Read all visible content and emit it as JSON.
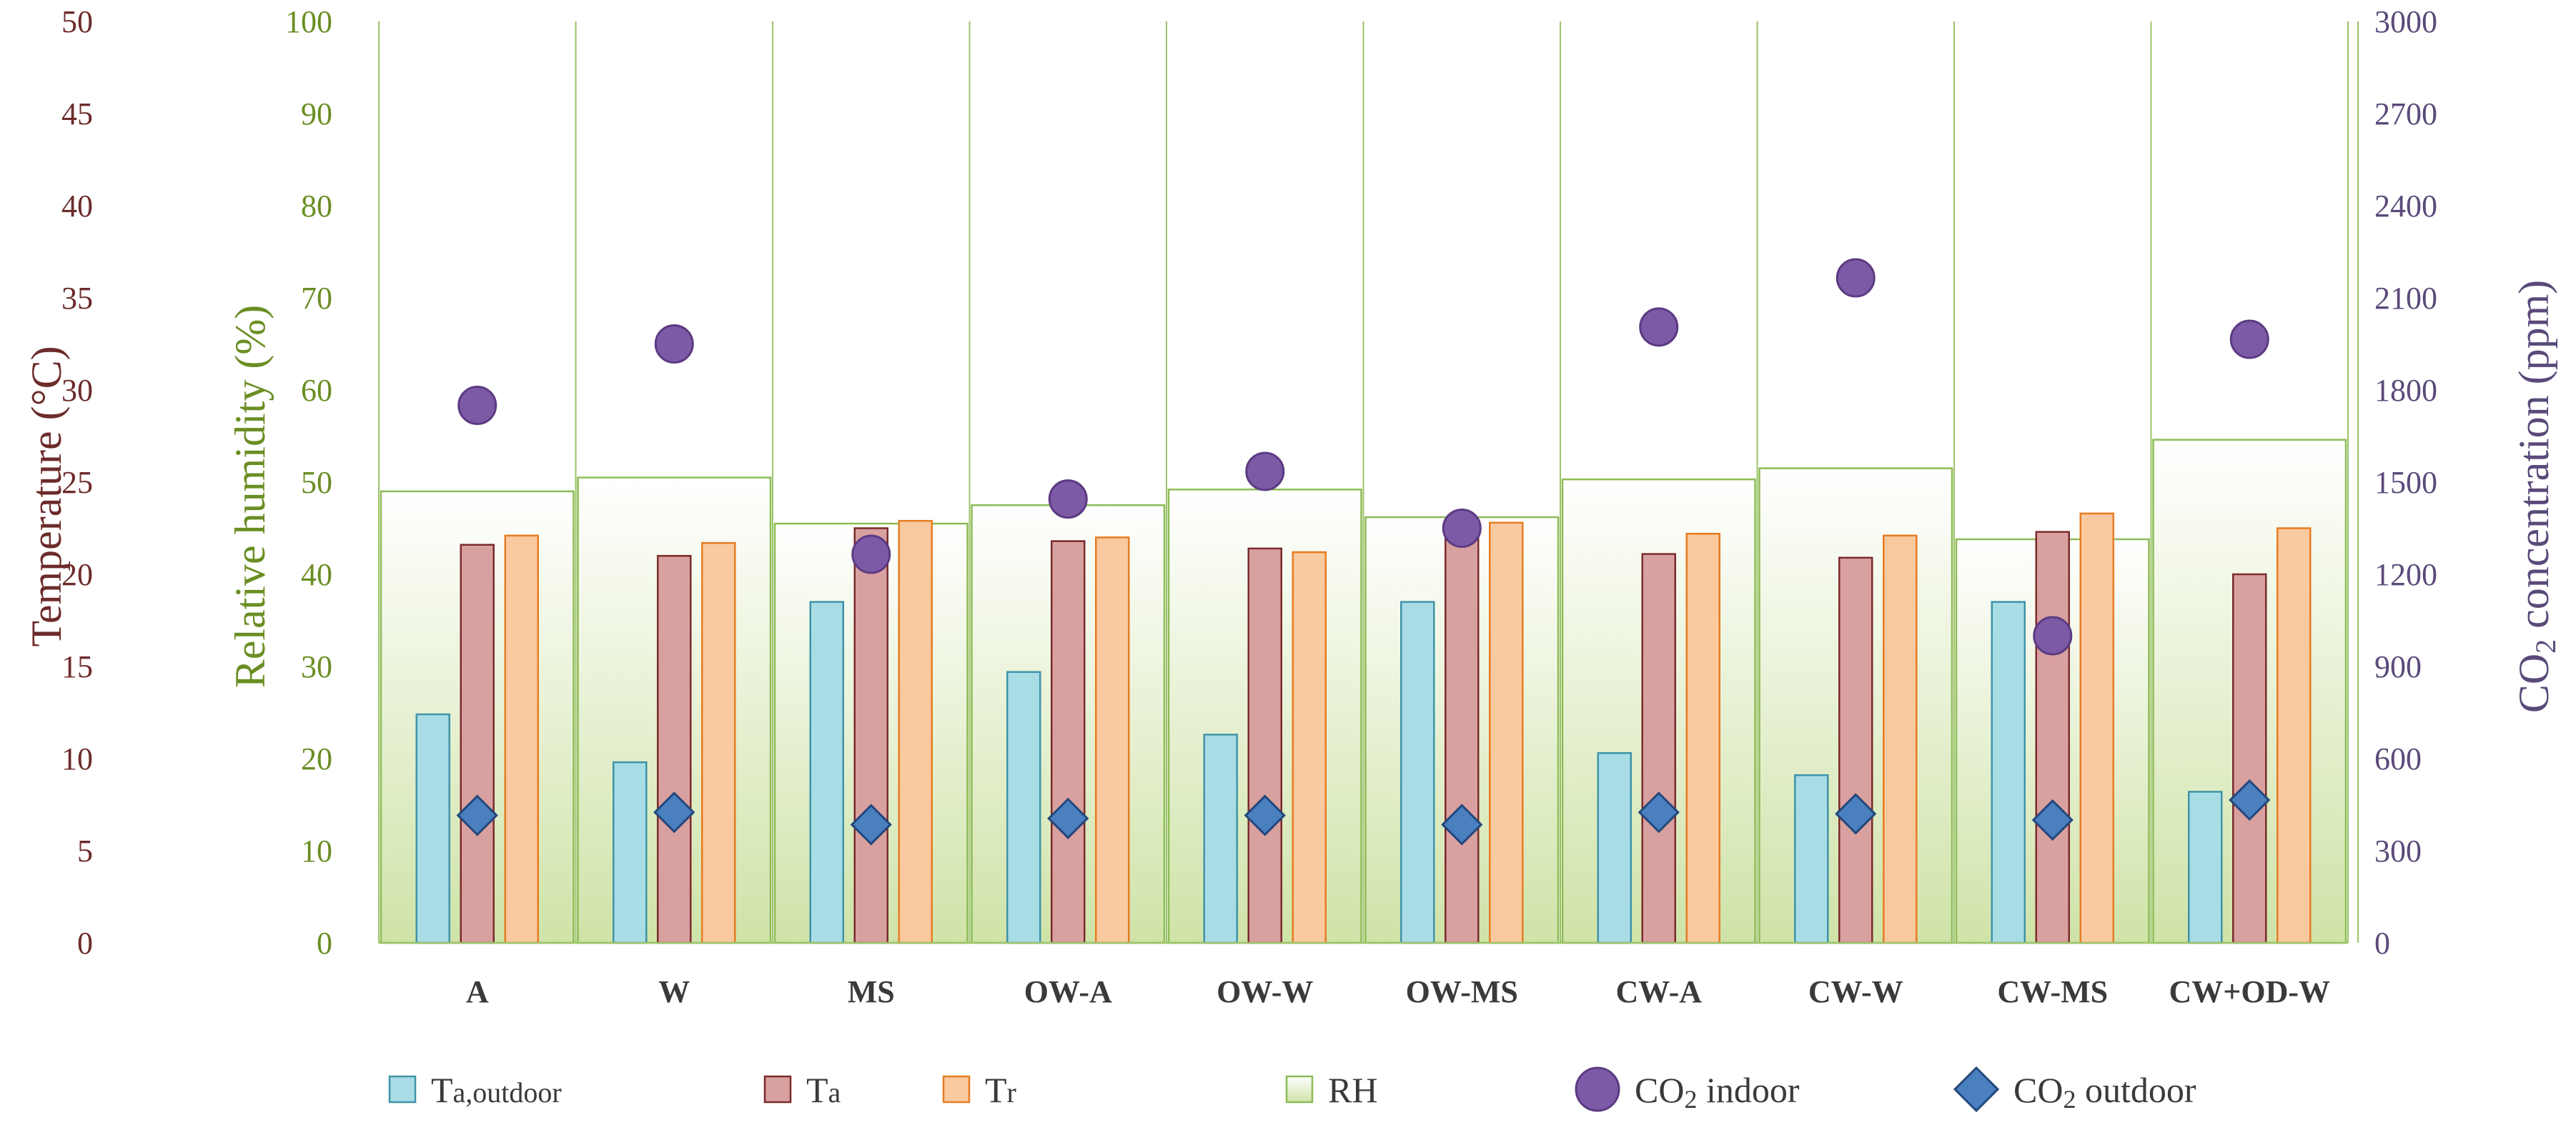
{
  "chart_data": {
    "type": "bar",
    "title": "",
    "categories": [
      "A",
      "W",
      "MS",
      "OW-A",
      "OW-W",
      "OW-MS",
      "CW-A",
      "CW-W",
      "CW-MS",
      "CW+OD-W"
    ],
    "axes": {
      "temperature": {
        "label": "Temperature (°C)",
        "ylim": [
          0,
          50
        ],
        "ticks": [
          0,
          5,
          10,
          15,
          20,
          25,
          30,
          35,
          40,
          45,
          50
        ]
      },
      "rh": {
        "label": "Relative humidity (%)",
        "ylim": [
          0,
          100
        ],
        "ticks": [
          0,
          10,
          20,
          30,
          40,
          50,
          60,
          70,
          80,
          90,
          100
        ]
      },
      "co2": {
        "label_prefix": "CO",
        "label_sub": "2",
        "label_suffix": " concentration (ppm)",
        "ylim": [
          0,
          3000
        ],
        "ticks": [
          0,
          300,
          600,
          900,
          1200,
          1500,
          1800,
          2100,
          2400,
          2700,
          3000
        ]
      }
    },
    "series": [
      {
        "name": "Ta,outdoor",
        "axis": "temperature",
        "kind": "bar",
        "color": "#a9dde6",
        "stroke": "#3f93a8",
        "values": [
          12.4,
          9.8,
          18.5,
          14.7,
          11.3,
          18.5,
          10.3,
          9.1,
          18.5,
          8.2
        ]
      },
      {
        "name": "Ta",
        "axis": "temperature",
        "kind": "bar",
        "color": "#d9a0a0",
        "stroke": "#7a2b2b",
        "values": [
          21.6,
          21.0,
          22.5,
          21.8,
          21.4,
          22.2,
          21.1,
          20.9,
          22.3,
          20.0
        ]
      },
      {
        "name": "Tr",
        "axis": "temperature",
        "kind": "bar",
        "color": "#f9c9a0",
        "stroke": "#e67c22",
        "values": [
          22.1,
          21.7,
          22.9,
          22.0,
          21.2,
          22.8,
          22.2,
          22.1,
          23.3,
          22.5
        ]
      },
      {
        "name": "RH",
        "axis": "rh",
        "kind": "area-bar",
        "color": "#d4e6b5",
        "stroke": "#8dbb55",
        "values": [
          49,
          50.5,
          45.5,
          47.5,
          49.2,
          46.2,
          50.3,
          51.5,
          43.8,
          54.6
        ]
      },
      {
        "name": "CO2 indoor",
        "axis": "co2",
        "kind": "marker-circle",
        "color": "#7d5aa6",
        "stroke": "#5b3b82",
        "values": [
          1750,
          1950,
          1265,
          1445,
          1535,
          1350,
          2005,
          2165,
          1000,
          1965
        ]
      },
      {
        "name": "CO2 outdoor",
        "axis": "co2",
        "kind": "marker-diamond",
        "color": "#4a7fc0",
        "stroke": "#24487a",
        "values": [
          415,
          425,
          385,
          405,
          415,
          385,
          425,
          420,
          400,
          465
        ]
      }
    ],
    "legend": {
      "position": "bottom",
      "entries": [
        {
          "key": "Ta,outdoor",
          "main": "T",
          "sub": "a,outdoor"
        },
        {
          "key": "Ta",
          "main": "T",
          "sub": "a"
        },
        {
          "key": "Tr",
          "main": "T",
          "sub": "r"
        },
        {
          "key": "RH",
          "main": "RH",
          "sub": ""
        },
        {
          "key": "CO2 indoor",
          "main": "CO",
          "sub": "2",
          "after": " indoor"
        },
        {
          "key": "CO2 outdoor",
          "main": "CO",
          "sub": "2",
          "after": " outdoor"
        }
      ]
    }
  }
}
